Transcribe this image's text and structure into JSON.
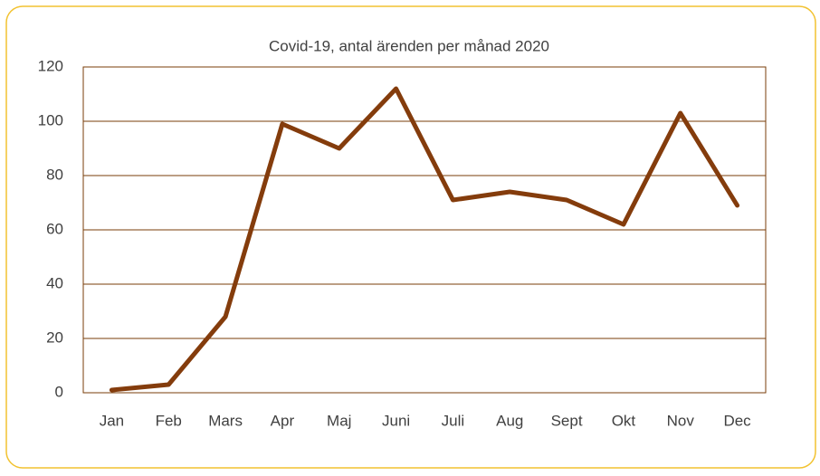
{
  "chart_data": {
    "type": "line",
    "title": "Covid-19, antal ärenden per månad 2020",
    "categories": [
      "Jan",
      "Feb",
      "Mars",
      "Apr",
      "Maj",
      "Juni",
      "Juli",
      "Aug",
      "Sept",
      "Okt",
      "Nov",
      "Dec"
    ],
    "series": [
      {
        "name": "Covid-19",
        "color": "#843c0c",
        "values": [
          1,
          3,
          28,
          99,
          90,
          112,
          71,
          74,
          71,
          62,
          103,
          69
        ]
      }
    ],
    "ylim": [
      0,
      120
    ],
    "yticks": [
      0,
      20,
      40,
      60,
      80,
      100,
      120
    ],
    "grid": true
  }
}
